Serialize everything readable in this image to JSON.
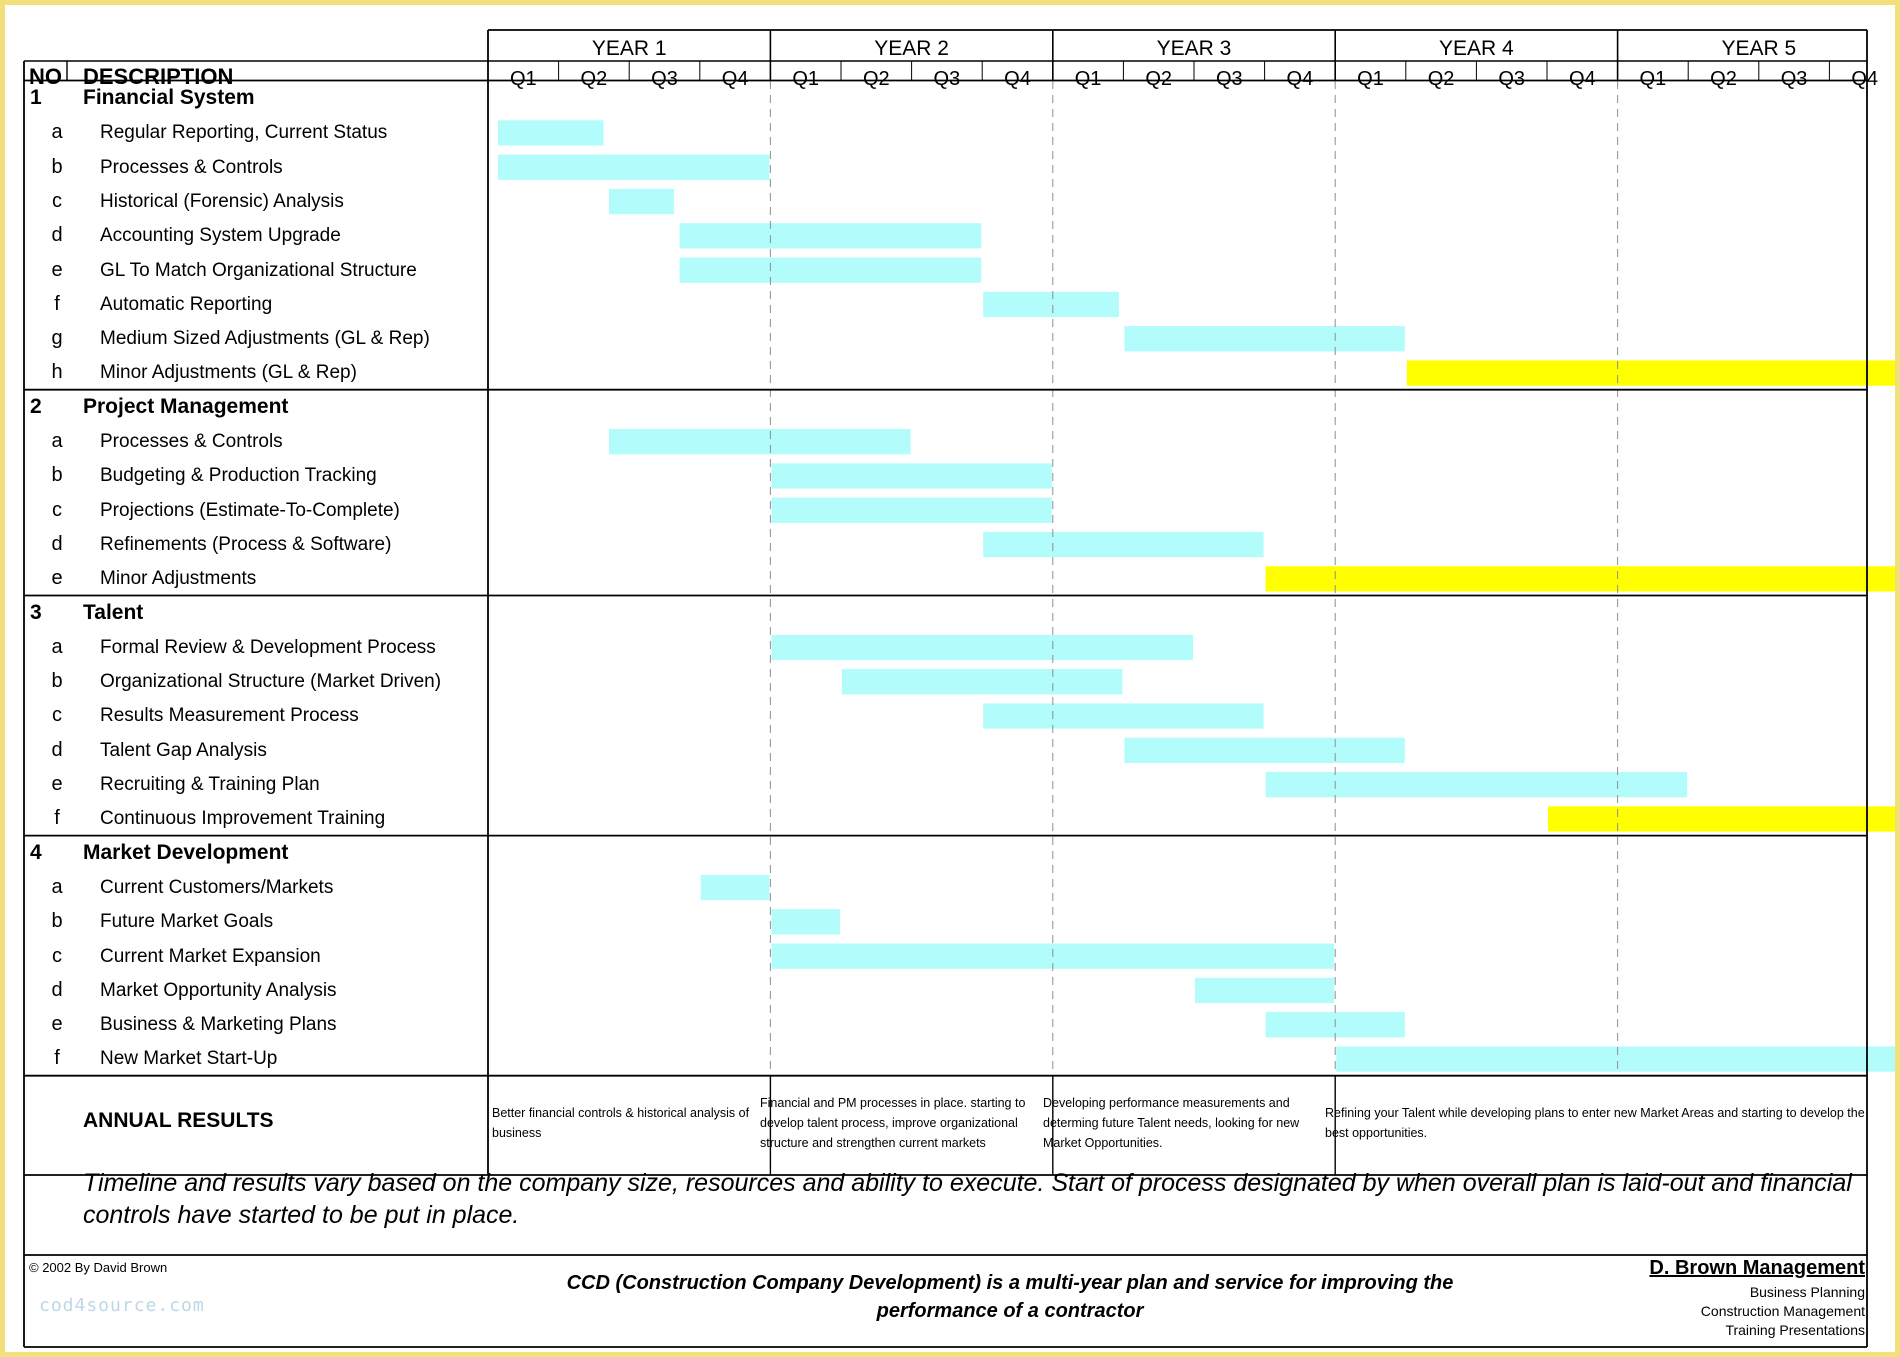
{
  "header": {
    "no_label": "NO",
    "description_label": "DESCRIPTION",
    "years": [
      "YEAR 1",
      "YEAR 2",
      "YEAR 3",
      "YEAR 4",
      "YEAR 5"
    ],
    "quarters": [
      "Q1",
      "Q2",
      "Q3",
      "Q4"
    ]
  },
  "colors": {
    "planned_bar": "#b3fcfc",
    "ongoing_bar": "#ffff00",
    "border": "#000000",
    "year_divider": "#8f8f8f",
    "page_frame": "#f2e17a"
  },
  "sections": [
    {
      "num": "1",
      "title": "Financial System",
      "rows": [
        {
          "letter": "a",
          "desc": "Regular Reporting, Current Status",
          "start": 0.0,
          "end": 1.65,
          "color": "cyan"
        },
        {
          "letter": "b",
          "desc": "Processes & Controls",
          "start": 0.0,
          "end": 4.0,
          "color": "cyan"
        },
        {
          "letter": "c",
          "desc": "Historical (Forensic) Analysis",
          "start": 1.7,
          "end": 2.65,
          "color": "cyan"
        },
        {
          "letter": "d",
          "desc": "Accounting System Upgrade",
          "start": 2.7,
          "end": 7.0,
          "color": "cyan"
        },
        {
          "letter": "e",
          "desc": "GL To Match Organizational Structure",
          "start": 2.7,
          "end": 7.0,
          "color": "cyan"
        },
        {
          "letter": "f",
          "desc": "Automatic Reporting",
          "start": 7.0,
          "end": 8.95,
          "color": "cyan"
        },
        {
          "letter": "g",
          "desc": "Medium Sized Adjustments (GL & Rep)",
          "start": 9.0,
          "end": 13.0,
          "color": "cyan"
        },
        {
          "letter": "h",
          "desc": "Minor Adjustments (GL & Rep)",
          "start": 13.0,
          "end": 20.0,
          "color": "yellow"
        }
      ]
    },
    {
      "num": "2",
      "title": "Project Management",
      "rows": [
        {
          "letter": "a",
          "desc": "Processes & Controls",
          "start": 1.7,
          "end": 6.0,
          "color": "cyan"
        },
        {
          "letter": "b",
          "desc": "Budgeting & Production Tracking",
          "start": 4.0,
          "end": 8.0,
          "color": "cyan"
        },
        {
          "letter": "c",
          "desc": "Projections (Estimate-To-Complete)",
          "start": 4.0,
          "end": 8.0,
          "color": "cyan"
        },
        {
          "letter": "d",
          "desc": "Refinements (Process & Software)",
          "start": 7.0,
          "end": 11.0,
          "color": "cyan"
        },
        {
          "letter": "e",
          "desc": "Minor Adjustments",
          "start": 11.0,
          "end": 20.0,
          "color": "yellow"
        }
      ]
    },
    {
      "num": "3",
      "title": "Talent",
      "rows": [
        {
          "letter": "a",
          "desc": "Formal Review & Development Process",
          "start": 4.0,
          "end": 10.0,
          "color": "cyan"
        },
        {
          "letter": "b",
          "desc": "Organizational Structure (Market Driven)",
          "start": 5.0,
          "end": 9.0,
          "color": "cyan"
        },
        {
          "letter": "c",
          "desc": "Results Measurement Process",
          "start": 7.0,
          "end": 11.0,
          "color": "cyan"
        },
        {
          "letter": "d",
          "desc": "Talent Gap Analysis",
          "start": 9.0,
          "end": 13.0,
          "color": "cyan"
        },
        {
          "letter": "e",
          "desc": "Recruiting & Training Plan",
          "start": 11.0,
          "end": 17.0,
          "color": "cyan"
        },
        {
          "letter": "f",
          "desc": "Continuous Improvement Training",
          "start": 15.0,
          "end": 20.0,
          "color": "yellow"
        }
      ]
    },
    {
      "num": "4",
      "title": "Market Development",
      "rows": [
        {
          "letter": "a",
          "desc": "Current Customers/Markets",
          "start": 3.0,
          "end": 4.0,
          "color": "cyan"
        },
        {
          "letter": "b",
          "desc": "Future Market Goals",
          "start": 4.0,
          "end": 5.0,
          "color": "cyan"
        },
        {
          "letter": "c",
          "desc": "Current Market Expansion",
          "start": 4.0,
          "end": 12.0,
          "color": "cyan"
        },
        {
          "letter": "d",
          "desc": "Market Opportunity Analysis",
          "start": 10.0,
          "end": 12.0,
          "color": "cyan"
        },
        {
          "letter": "e",
          "desc": "Business & Marketing Plans",
          "start": 11.0,
          "end": 13.0,
          "color": "cyan"
        },
        {
          "letter": "f",
          "desc": "New Market Start-Up",
          "start": 12.0,
          "end": 20.0,
          "color": "cyan"
        }
      ]
    }
  ],
  "annual_results": {
    "label": "ANNUAL RESULTS",
    "year1": "Better financial controls & historical analysis of business",
    "year2": "Financial and PM processes in place. starting to develop talent process, improve organizational structure and strengthen current markets",
    "year3": "Developing performance measurements and determing future Talent needs, looking for new Market Opportunities.",
    "year45": "Refining your Talent while developing plans to enter new Market Areas and starting to develop the best opportunities."
  },
  "note": "Timeline and results vary based on the company size, resources and ability to execute.  Start of process designated by when overall plan is laid-out and financial controls have started to be put in place.",
  "footer": {
    "copyright": "© 2002 By David Brown",
    "watermark": "cod4source.com",
    "tagline": "CCD (Construction Company Development) is a multi-year plan and service for improving the performance of a contractor",
    "brand": "D. Brown Management",
    "services": [
      "Business Planning",
      "Construction Management",
      "Training Presentations"
    ]
  }
}
